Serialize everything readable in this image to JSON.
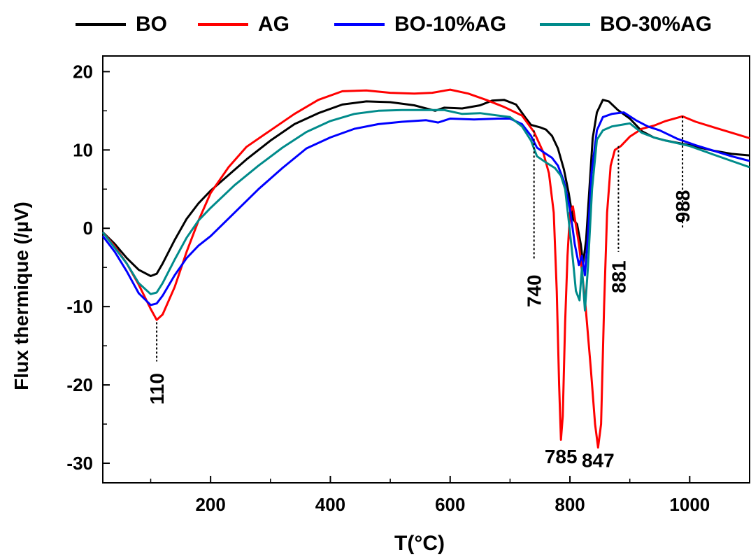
{
  "chart_data": {
    "type": "line",
    "title": "",
    "xlabel": "T(°C)",
    "ylabel": "Flux thermique (/µV)",
    "xlim": [
      20,
      1100
    ],
    "ylim": [
      -32.5,
      22
    ],
    "xticks": [
      200,
      400,
      600,
      800,
      1000
    ],
    "yticks": [
      20,
      10,
      0,
      -10,
      -20,
      -30
    ],
    "grid": false,
    "legend": "top",
    "series": [
      {
        "name": "BO",
        "color": "#000000",
        "points": [
          [
            20,
            -0.5
          ],
          [
            40,
            -2
          ],
          [
            60,
            -3.8
          ],
          [
            80,
            -5.3
          ],
          [
            100,
            -6.1
          ],
          [
            110,
            -5.8
          ],
          [
            120,
            -4.5
          ],
          [
            140,
            -1.5
          ],
          [
            160,
            1.2
          ],
          [
            180,
            3.2
          ],
          [
            200,
            4.8
          ],
          [
            230,
            6.8
          ],
          [
            260,
            8.8
          ],
          [
            300,
            11.2
          ],
          [
            340,
            13.3
          ],
          [
            380,
            14.7
          ],
          [
            420,
            15.8
          ],
          [
            460,
            16.2
          ],
          [
            500,
            16.1
          ],
          [
            540,
            15.7
          ],
          [
            560,
            15.3
          ],
          [
            575,
            15.0
          ],
          [
            590,
            15.4
          ],
          [
            620,
            15.3
          ],
          [
            650,
            15.7
          ],
          [
            670,
            16.3
          ],
          [
            690,
            16.4
          ],
          [
            710,
            15.8
          ],
          [
            725,
            14.2
          ],
          [
            735,
            13.2
          ],
          [
            750,
            12.9
          ],
          [
            760,
            12.6
          ],
          [
            770,
            11.8
          ],
          [
            780,
            10.2
          ],
          [
            790,
            7.5
          ],
          [
            798,
            4.5
          ],
          [
            805,
            1.2
          ],
          [
            812,
            0.5
          ],
          [
            818,
            -2.0
          ],
          [
            822,
            -4.5
          ],
          [
            827,
            -1.5
          ],
          [
            832,
            4.5
          ],
          [
            838,
            11.5
          ],
          [
            845,
            14.8
          ],
          [
            855,
            16.4
          ],
          [
            865,
            16.2
          ],
          [
            880,
            15.1
          ],
          [
            900,
            14.0
          ],
          [
            920,
            12.4
          ],
          [
            940,
            11.6
          ],
          [
            960,
            11.2
          ],
          [
            1000,
            10.6
          ],
          [
            1040,
            9.9
          ],
          [
            1070,
            9.5
          ],
          [
            1100,
            9.3
          ]
        ]
      },
      {
        "name": "AG",
        "color": "#ff0000",
        "points": [
          [
            20,
            -0.5
          ],
          [
            40,
            -2.3
          ],
          [
            60,
            -4.5
          ],
          [
            80,
            -7.2
          ],
          [
            100,
            -10.3
          ],
          [
            110,
            -11.7
          ],
          [
            120,
            -11.0
          ],
          [
            140,
            -7.5
          ],
          [
            160,
            -3.0
          ],
          [
            180,
            1.0
          ],
          [
            200,
            4.5
          ],
          [
            230,
            7.8
          ],
          [
            260,
            10.4
          ],
          [
            300,
            12.5
          ],
          [
            340,
            14.6
          ],
          [
            380,
            16.4
          ],
          [
            420,
            17.5
          ],
          [
            460,
            17.6
          ],
          [
            500,
            17.3
          ],
          [
            540,
            17.2
          ],
          [
            570,
            17.3
          ],
          [
            600,
            17.7
          ],
          [
            630,
            17.2
          ],
          [
            660,
            16.4
          ],
          [
            690,
            15.5
          ],
          [
            720,
            14.4
          ],
          [
            740,
            12.3
          ],
          [
            755,
            9.8
          ],
          [
            765,
            7.0
          ],
          [
            773,
            2.0
          ],
          [
            778,
            -8.0
          ],
          [
            782,
            -20.0
          ],
          [
            785,
            -27.0
          ],
          [
            788,
            -24.0
          ],
          [
            792,
            -12.0
          ],
          [
            796,
            -3.5
          ],
          [
            800,
            2.0
          ],
          [
            805,
            2.8
          ],
          [
            815,
            -2.0
          ],
          [
            825,
            -9.0
          ],
          [
            835,
            -18.0
          ],
          [
            842,
            -25.0
          ],
          [
            847,
            -28.0
          ],
          [
            852,
            -25.0
          ],
          [
            857,
            -10.0
          ],
          [
            862,
            2.0
          ],
          [
            868,
            8.0
          ],
          [
            875,
            10.0
          ],
          [
            885,
            10.5
          ],
          [
            900,
            11.7
          ],
          [
            920,
            12.7
          ],
          [
            940,
            13.1
          ],
          [
            960,
            13.7
          ],
          [
            988,
            14.3
          ],
          [
            1010,
            13.6
          ],
          [
            1040,
            12.9
          ],
          [
            1070,
            12.2
          ],
          [
            1100,
            11.5
          ]
        ]
      },
      {
        "name": "BO-10%AG",
        "color": "#0000ff",
        "points": [
          [
            20,
            -1.0
          ],
          [
            40,
            -3.0
          ],
          [
            60,
            -5.5
          ],
          [
            80,
            -8.3
          ],
          [
            100,
            -9.8
          ],
          [
            110,
            -9.6
          ],
          [
            120,
            -8.6
          ],
          [
            140,
            -6.0
          ],
          [
            160,
            -3.8
          ],
          [
            180,
            -2.2
          ],
          [
            200,
            -1.0
          ],
          [
            240,
            2.0
          ],
          [
            280,
            5.0
          ],
          [
            320,
            7.7
          ],
          [
            360,
            10.2
          ],
          [
            400,
            11.6
          ],
          [
            440,
            12.7
          ],
          [
            480,
            13.3
          ],
          [
            520,
            13.6
          ],
          [
            560,
            13.8
          ],
          [
            580,
            13.5
          ],
          [
            600,
            14.0
          ],
          [
            640,
            13.9
          ],
          [
            680,
            14.0
          ],
          [
            700,
            14.0
          ],
          [
            720,
            13.3
          ],
          [
            735,
            11.8
          ],
          [
            745,
            10.3
          ],
          [
            760,
            9.5
          ],
          [
            770,
            9.0
          ],
          [
            780,
            8.0
          ],
          [
            790,
            6.0
          ],
          [
            800,
            2.5
          ],
          [
            808,
            -2.0
          ],
          [
            815,
            -4.7
          ],
          [
            820,
            -3.5
          ],
          [
            825,
            -6.0
          ],
          [
            830,
            -1.0
          ],
          [
            836,
            7.0
          ],
          [
            845,
            12.5
          ],
          [
            855,
            14.2
          ],
          [
            870,
            14.6
          ],
          [
            890,
            14.8
          ],
          [
            910,
            13.8
          ],
          [
            930,
            13.0
          ],
          [
            950,
            12.5
          ],
          [
            980,
            11.4
          ],
          [
            1010,
            10.6
          ],
          [
            1040,
            9.9
          ],
          [
            1070,
            9.2
          ],
          [
            1100,
            8.6
          ]
        ]
      },
      {
        "name": "BO-30%AG",
        "color": "#008b8b",
        "points": [
          [
            20,
            -0.5
          ],
          [
            40,
            -2.5
          ],
          [
            60,
            -4.5
          ],
          [
            80,
            -7.0
          ],
          [
            100,
            -8.4
          ],
          [
            110,
            -8.2
          ],
          [
            120,
            -7.0
          ],
          [
            140,
            -4.0
          ],
          [
            160,
            -1.2
          ],
          [
            180,
            1.0
          ],
          [
            200,
            2.6
          ],
          [
            240,
            5.5
          ],
          [
            280,
            8.0
          ],
          [
            320,
            10.3
          ],
          [
            360,
            12.3
          ],
          [
            400,
            13.7
          ],
          [
            440,
            14.6
          ],
          [
            480,
            15.0
          ],
          [
            520,
            15.1
          ],
          [
            560,
            15.1
          ],
          [
            590,
            15.1
          ],
          [
            620,
            14.6
          ],
          [
            650,
            14.7
          ],
          [
            680,
            14.4
          ],
          [
            700,
            14.2
          ],
          [
            720,
            13.0
          ],
          [
            735,
            11.2
          ],
          [
            745,
            9.2
          ],
          [
            760,
            8.4
          ],
          [
            775,
            7.7
          ],
          [
            785,
            6.7
          ],
          [
            792,
            5.0
          ],
          [
            798,
            1.0
          ],
          [
            805,
            -4.0
          ],
          [
            810,
            -8.0
          ],
          [
            816,
            -9.2
          ],
          [
            820,
            -5.0
          ],
          [
            825,
            -10.5
          ],
          [
            830,
            -5.0
          ],
          [
            837,
            5.0
          ],
          [
            845,
            11.3
          ],
          [
            855,
            12.5
          ],
          [
            870,
            13.0
          ],
          [
            885,
            13.2
          ],
          [
            900,
            13.4
          ],
          [
            920,
            12.2
          ],
          [
            940,
            11.6
          ],
          [
            960,
            11.2
          ],
          [
            1000,
            10.5
          ],
          [
            1040,
            9.4
          ],
          [
            1070,
            8.6
          ],
          [
            1100,
            7.8
          ]
        ]
      }
    ],
    "annotations": [
      {
        "text": "110",
        "x": 110,
        "y_from": -12,
        "y_to": -17,
        "label_y": -20.5,
        "rotated": true
      },
      {
        "text": "740",
        "x": 740,
        "y_from": 12.5,
        "y_to": -4,
        "label_y": -8,
        "rotated": true
      },
      {
        "text": "881",
        "x": 881,
        "y_from": 10.5,
        "y_to": -3,
        "label_y": -6.2,
        "rotated": true
      },
      {
        "text": "988",
        "x": 988,
        "y_from": 14.3,
        "y_to": 0,
        "label_y": 2.8,
        "rotated": true
      },
      {
        "text": "785",
        "x": 785,
        "label_y": -30,
        "rotated": false
      },
      {
        "text": "847",
        "x": 847,
        "label_y": -30.5,
        "rotated": false
      }
    ]
  }
}
